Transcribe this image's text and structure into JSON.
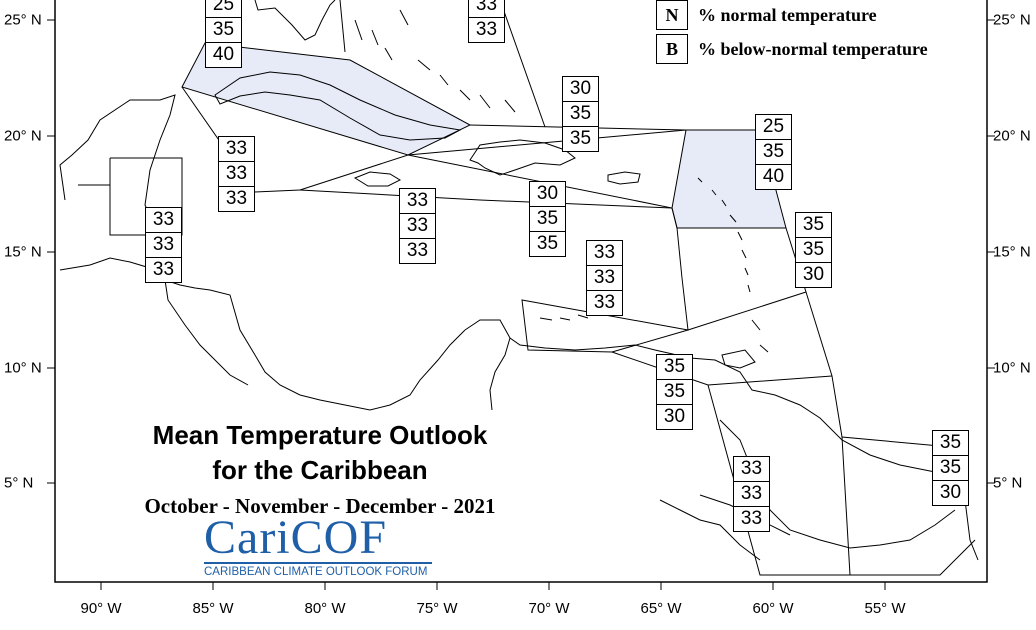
{
  "map": {
    "title_line1": "Mean Temperature Outlook",
    "title_line2": "for the Caribbean",
    "season": "October - November - December - 2021",
    "logo": {
      "name": "CariCOF",
      "subtitle": "CARIBBEAN CLIMATE OUTLOOK FORUM"
    },
    "legend": [
      {
        "key": "N",
        "label": "% normal temperature"
      },
      {
        "key": "B",
        "label": "% below-normal temperature"
      }
    ],
    "lon_labels": [
      "90° W",
      "85° W",
      "80° W",
      "75° W",
      "70° W",
      "65° W",
      "60° W",
      "55° W"
    ],
    "lat_labels": [
      "25° N",
      "20° N",
      "15° N",
      "10° N",
      "5° N"
    ],
    "colors": {
      "highlight_fill": "#e6ebf7",
      "land_outline": "#000000",
      "logo_blue": "#1f5fa8"
    },
    "regions": [
      {
        "id": "bahamas-north",
        "values": [
          "25",
          "35",
          "40"
        ],
        "highlighted": true
      },
      {
        "id": "turks-caicos",
        "values": [
          "33",
          "33"
        ]
      },
      {
        "id": "hispaniola",
        "values": [
          "30",
          "35",
          "35"
        ]
      },
      {
        "id": "northern-leewards",
        "values": [
          "25",
          "35",
          "40"
        ],
        "highlighted": true
      },
      {
        "id": "yucatan",
        "values": [
          "33",
          "33",
          "33"
        ]
      },
      {
        "id": "belize",
        "values": [
          "33",
          "33",
          "33"
        ]
      },
      {
        "id": "jamaica",
        "values": [
          "33",
          "33",
          "33"
        ]
      },
      {
        "id": "puerto-rico",
        "values": [
          "30",
          "35",
          "35"
        ]
      },
      {
        "id": "windwards",
        "values": [
          "35",
          "35",
          "30"
        ]
      },
      {
        "id": "abc-islands",
        "values": [
          "33",
          "33",
          "33"
        ]
      },
      {
        "id": "trinidad",
        "values": [
          "35",
          "35",
          "30"
        ]
      },
      {
        "id": "guyana",
        "values": [
          "33",
          "33",
          "33"
        ]
      },
      {
        "id": "suriname",
        "values": [
          "35",
          "35",
          "30"
        ]
      }
    ]
  }
}
